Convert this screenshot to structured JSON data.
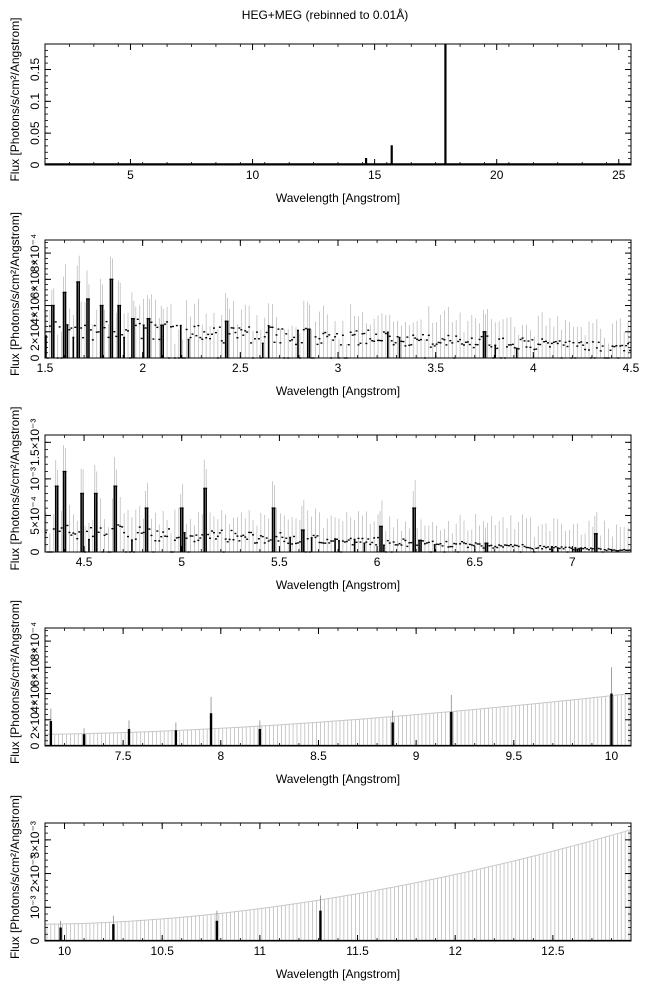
{
  "figure_title": "HEG+MEG (rebinned to 0.01Å)",
  "chart_data": [
    {
      "type": "line",
      "xlabel": "Wavelength [Angstrom]",
      "ylabel": "Flux [Photons/s/cm²/Angstrom]",
      "xlim": [
        1.5,
        25.5
      ],
      "ylim": [
        0,
        0.19
      ],
      "x_ticks": [
        5,
        10,
        15,
        20,
        25
      ],
      "x_tick_labels": [
        "5",
        "10",
        "15",
        "20",
        "25"
      ],
      "y_ticks": [
        0,
        0.05,
        0.1,
        0.15
      ],
      "y_tick_labels": [
        "0",
        "0.05",
        "0.1",
        "0.15"
      ],
      "baseline": 0.0015,
      "lines": [
        {
          "x": 14.65,
          "y": 0.011
        },
        {
          "x": 15.7,
          "y": 0.031
        },
        {
          "x": 17.9,
          "y": 0.19
        }
      ]
    },
    {
      "type": "line",
      "xlabel": "Wavelength [Angstrom]",
      "ylabel": "Flux [Photons/s/cm²/Angstrom]",
      "xlim": [
        1.5,
        4.5
      ],
      "ylim": [
        0,
        0.0009
      ],
      "x_ticks": [
        1.5,
        2,
        2.5,
        3,
        3.5,
        4,
        4.5
      ],
      "x_tick_labels": [
        "1.5",
        "2",
        "2.5",
        "3",
        "3.5",
        "4",
        "4.5"
      ],
      "y_ticks": [
        0,
        0.0002,
        0.0004,
        0.0006,
        0.0008
      ],
      "y_tick_labels": [
        "0",
        "2×10⁻⁴",
        "4×10⁻⁴",
        "6×10⁻⁴",
        "8×10⁻⁴"
      ],
      "baseline_start": 0.00024,
      "baseline_end": 8e-05,
      "error": 0.00016,
      "spikes": [
        {
          "x": 1.54,
          "y": 0.0004
        },
        {
          "x": 1.6,
          "y": 0.0005
        },
        {
          "x": 1.67,
          "y": 0.00058
        },
        {
          "x": 1.72,
          "y": 0.00045
        },
        {
          "x": 1.79,
          "y": 0.0004
        },
        {
          "x": 1.84,
          "y": 0.0006
        },
        {
          "x": 1.88,
          "y": 0.0004
        },
        {
          "x": 1.95,
          "y": 0.0003
        },
        {
          "x": 2.03,
          "y": 0.0003
        },
        {
          "x": 2.1,
          "y": 0.00025
        },
        {
          "x": 2.43,
          "y": 0.00028
        },
        {
          "x": 2.85,
          "y": 0.00022
        },
        {
          "x": 3.75,
          "y": 0.0002
        }
      ]
    },
    {
      "type": "line",
      "xlabel": "Wavelength [Angstrom]",
      "ylabel": "Flux [Photons/s/cm²/Angstrom]",
      "xlim": [
        4.3,
        7.3
      ],
      "ylim": [
        0,
        0.0016
      ],
      "x_ticks": [
        4.5,
        5,
        5.5,
        6,
        6.5,
        7
      ],
      "x_tick_labels": [
        "4.5",
        "5",
        "5.5",
        "6",
        "6.5",
        "7"
      ],
      "y_ticks": [
        0,
        0.0005,
        0.001,
        0.0015
      ],
      "y_tick_labels": [
        "0",
        "5×10⁻⁴",
        "10⁻³",
        "1.5×10⁻³"
      ],
      "baseline_start": 0.0003,
      "baseline_end": 2e-05,
      "error": 0.0003,
      "spikes": [
        {
          "x": 4.36,
          "y": 0.0009
        },
        {
          "x": 4.4,
          "y": 0.0011
        },
        {
          "x": 4.49,
          "y": 0.0008
        },
        {
          "x": 4.56,
          "y": 0.0008
        },
        {
          "x": 4.66,
          "y": 0.0009
        },
        {
          "x": 4.82,
          "y": 0.0006
        },
        {
          "x": 5.0,
          "y": 0.0006
        },
        {
          "x": 5.12,
          "y": 0.00087
        },
        {
          "x": 5.47,
          "y": 0.0006
        },
        {
          "x": 5.62,
          "y": 0.0003
        },
        {
          "x": 6.02,
          "y": 0.00035
        },
        {
          "x": 6.19,
          "y": 0.0006
        },
        {
          "x": 6.56,
          "y": 0.00012
        },
        {
          "x": 7.12,
          "y": 0.00025
        }
      ]
    },
    {
      "type": "line",
      "xlabel": "Wavelength [Angstrom]",
      "ylabel": "Flux [Photons/s/cm²/Angstrom]",
      "xlim": [
        7.1,
        10.1
      ],
      "ylim": [
        0,
        0.0009
      ],
      "x_ticks": [
        7.5,
        8,
        8.5,
        9,
        9.5,
        10
      ],
      "x_tick_labels": [
        "7.5",
        "8",
        "8.5",
        "9",
        "9.5",
        "10"
      ],
      "y_ticks": [
        0,
        0.0002,
        0.0004,
        0.0006,
        0.0008
      ],
      "y_tick_labels": [
        "0",
        "2×10⁻⁴",
        "4×10⁻⁴",
        "6×10⁻⁴",
        "8×10⁻⁴"
      ],
      "envelope_start": 9e-05,
      "envelope_end": 0.0004,
      "spikes": [
        {
          "x": 7.13,
          "y": 0.00019
        },
        {
          "x": 7.3,
          "y": 9e-05
        },
        {
          "x": 7.53,
          "y": 0.00013
        },
        {
          "x": 7.77,
          "y": 0.00012
        },
        {
          "x": 7.95,
          "y": 0.00025
        },
        {
          "x": 8.2,
          "y": 0.00013
        },
        {
          "x": 8.88,
          "y": 0.00018
        },
        {
          "x": 9.18,
          "y": 0.00026
        },
        {
          "x": 10.0,
          "y": 0.0004
        }
      ]
    },
    {
      "type": "line",
      "xlabel": "Wavelength [Angstrom]",
      "ylabel": "Flux [Photons/s/cm²/Angstrom]",
      "xlim": [
        9.9,
        12.9
      ],
      "ylim": [
        0,
        0.0035
      ],
      "x_ticks": [
        10,
        10.5,
        11,
        11.5,
        12,
        12.5
      ],
      "x_tick_labels": [
        "10",
        "10.5",
        "11",
        "11.5",
        "12",
        "12.5"
      ],
      "y_ticks": [
        0,
        0.001,
        0.002,
        0.003
      ],
      "y_tick_labels": [
        "0",
        "10⁻³",
        "2×10⁻³",
        "3×10⁻³"
      ],
      "envelope_start": 0.0005,
      "envelope_end": 0.0033,
      "spikes": [
        {
          "x": 9.98,
          "y": 0.0004
        },
        {
          "x": 10.25,
          "y": 0.0005
        },
        {
          "x": 10.78,
          "y": 0.0006
        },
        {
          "x": 11.31,
          "y": 0.0009
        }
      ]
    }
  ]
}
